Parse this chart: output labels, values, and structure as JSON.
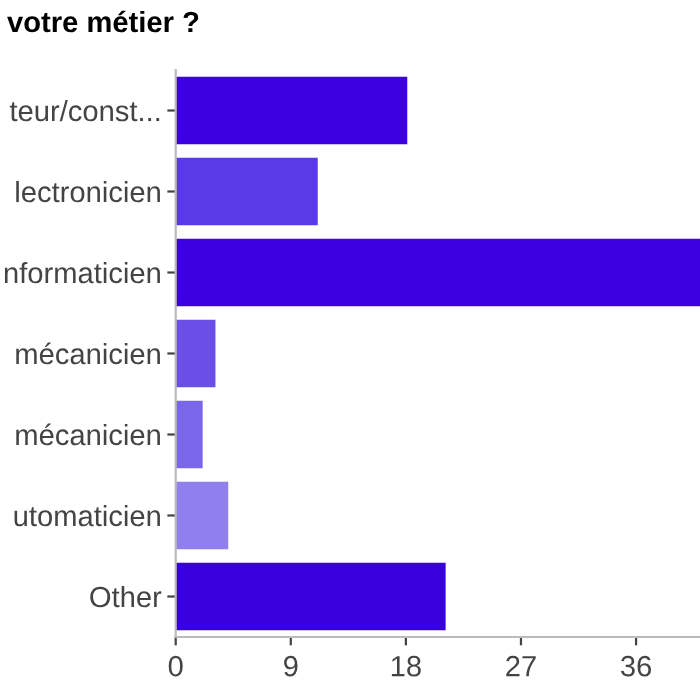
{
  "chart_data": {
    "type": "bar",
    "orientation": "horizontal",
    "title": "votre métier ?",
    "categories": [
      "teur/const...",
      "lectronicien",
      "nformaticien",
      "mécanicien",
      "mécanicien",
      "utomaticien",
      "Other"
    ],
    "values": [
      18,
      11,
      41,
      3,
      2,
      4,
      21
    ],
    "colors": [
      "#3d00e0",
      "#5a3ae6",
      "#3d00e0",
      "#6a4ee8",
      "#7a66ea",
      "#9080ee",
      "#3700dd"
    ],
    "xlim": [
      0,
      41
    ],
    "xticks": [
      0,
      9,
      18,
      27,
      36
    ],
    "grid": false
  }
}
